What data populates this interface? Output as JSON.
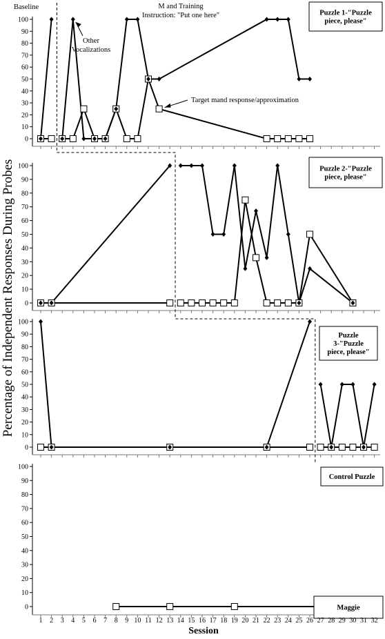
{
  "chart_data": {
    "type": "line",
    "ylabel": "Percentage of Independent Responses During Probes",
    "xlabel": "Session",
    "x_ticks": [
      1,
      2,
      3,
      4,
      5,
      6,
      7,
      8,
      9,
      10,
      11,
      12,
      13,
      14,
      15,
      16,
      17,
      18,
      19,
      20,
      21,
      22,
      23,
      24,
      25,
      26,
      27,
      28,
      29,
      30,
      31,
      32
    ],
    "y_ticks": [
      0,
      10,
      20,
      30,
      40,
      50,
      60,
      70,
      80,
      90,
      100
    ],
    "ylim": [
      0,
      100
    ],
    "xlim": [
      1,
      32
    ],
    "phase_labels": {
      "baseline": "Baseline",
      "training_line1": "M and Training",
      "training_line2": "Instruction: \"Put one here\""
    },
    "annotations": {
      "other": "Other Vocalizations",
      "target": "Target mand response/approximation"
    },
    "panels": [
      {
        "label_lines": [
          "Puzzle 1-\"Puzzle",
          "piece, please\""
        ],
        "phase_change": 2.5,
        "series": [
          {
            "name": "Other Vocalizations",
            "marker": "diamond",
            "segments": [
              [
                [
                  1,
                  0
                ],
                [
                  2,
                  100
                ]
              ],
              [
                [
                  3,
                  0
                ],
                [
                  4,
                  100
                ],
                [
                  5,
                  0
                ],
                [
                  6,
                  0
                ],
                [
                  7,
                  0
                ],
                [
                  8,
                  25
                ],
                [
                  9,
                  100
                ],
                [
                  10,
                  100
                ],
                [
                  11,
                  50
                ],
                [
                  12,
                  50
                ],
                [
                  22,
                  100
                ],
                [
                  23,
                  100
                ],
                [
                  24,
                  100
                ],
                [
                  25,
                  50
                ],
                [
                  26,
                  50
                ]
              ]
            ]
          },
          {
            "name": "Target mand response/approximation",
            "marker": "square",
            "segments": [
              [
                [
                  1,
                  0
                ],
                [
                  2,
                  0
                ]
              ],
              [
                [
                  3,
                  0
                ],
                [
                  4,
                  0
                ],
                [
                  5,
                  25
                ],
                [
                  6,
                  0
                ],
                [
                  7,
                  0
                ],
                [
                  8,
                  25
                ],
                [
                  9,
                  0
                ],
                [
                  10,
                  0
                ],
                [
                  11,
                  50
                ],
                [
                  12,
                  25
                ],
                [
                  22,
                  0
                ],
                [
                  23,
                  0
                ],
                [
                  24,
                  0
                ],
                [
                  25,
                  0
                ],
                [
                  26,
                  0
                ]
              ]
            ]
          }
        ]
      },
      {
        "label_lines": [
          "Puzzle 2-\"Puzzle",
          "piece, please\""
        ],
        "phase_change": 13.5,
        "series": [
          {
            "name": "Other Vocalizations",
            "marker": "diamond",
            "segments": [
              [
                [
                  1,
                  0
                ],
                [
                  2,
                  0
                ],
                [
                  13,
                  100
                ]
              ],
              [
                [
                  14,
                  100
                ],
                [
                  15,
                  100
                ],
                [
                  16,
                  100
                ],
                [
                  17,
                  50
                ],
                [
                  18,
                  50
                ],
                [
                  19,
                  100
                ],
                [
                  20,
                  25
                ],
                [
                  21,
                  67
                ],
                [
                  22,
                  33
                ],
                [
                  23,
                  100
                ],
                [
                  24,
                  50
                ],
                [
                  25,
                  0
                ],
                [
                  26,
                  25
                ],
                [
                  30,
                  0
                ]
              ]
            ]
          },
          {
            "name": "Target mand response/approximation",
            "marker": "square",
            "segments": [
              [
                [
                  1,
                  0
                ],
                [
                  2,
                  0
                ],
                [
                  13,
                  0
                ]
              ],
              [
                [
                  14,
                  0
                ],
                [
                  15,
                  0
                ],
                [
                  16,
                  0
                ],
                [
                  17,
                  0
                ],
                [
                  18,
                  0
                ],
                [
                  19,
                  0
                ],
                [
                  20,
                  75
                ],
                [
                  21,
                  33
                ],
                [
                  22,
                  0
                ],
                [
                  23,
                  0
                ],
                [
                  24,
                  0
                ],
                [
                  25,
                  0
                ],
                [
                  26,
                  50
                ],
                [
                  30,
                  0
                ]
              ]
            ]
          }
        ]
      },
      {
        "label_lines": [
          "Puzzle",
          "3-\"Puzzle",
          "piece, please\""
        ],
        "phase_change": 26.5,
        "series": [
          {
            "name": "Other Vocalizations",
            "marker": "diamond",
            "segments": [
              [
                [
                  1,
                  100
                ],
                [
                  2,
                  0
                ],
                [
                  13,
                  0
                ],
                [
                  22,
                  0
                ],
                [
                  26,
                  100
                ]
              ],
              [
                [
                  27,
                  50
                ],
                [
                  28,
                  0
                ],
                [
                  29,
                  50
                ],
                [
                  30,
                  50
                ],
                [
                  31,
                  0
                ],
                [
                  32,
                  50
                ]
              ]
            ]
          },
          {
            "name": "Target mand response/approximation",
            "marker": "square",
            "segments": [
              [
                [
                  1,
                  0
                ],
                [
                  2,
                  0
                ],
                [
                  13,
                  0
                ],
                [
                  22,
                  0
                ],
                [
                  26,
                  0
                ]
              ],
              [
                [
                  27,
                  0
                ],
                [
                  28,
                  0
                ],
                [
                  29,
                  0
                ],
                [
                  30,
                  0
                ],
                [
                  31,
                  0
                ],
                [
                  32,
                  0
                ]
              ]
            ]
          }
        ]
      },
      {
        "label_lines": [
          "Control Puzzle"
        ],
        "participant": "Maggie",
        "series": [
          {
            "name": "Target mand response/approximation",
            "marker": "square",
            "segments": [
              [
                [
                  8,
                  0
                ],
                [
                  13,
                  0
                ],
                [
                  19,
                  0
                ],
                [
                  30,
                  0
                ]
              ]
            ]
          }
        ]
      }
    ]
  }
}
